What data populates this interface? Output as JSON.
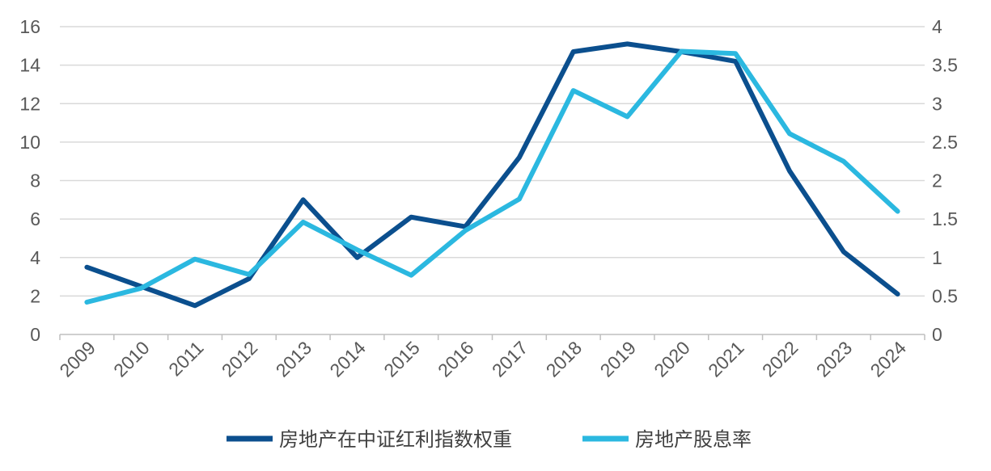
{
  "chart_data": {
    "type": "line",
    "categories": [
      "2009",
      "2010",
      "2011",
      "2012",
      "2013",
      "2014",
      "2015",
      "2016",
      "2017",
      "2018",
      "2019",
      "2020",
      "2021",
      "2022",
      "2023",
      "2024"
    ],
    "y_left": {
      "ylim": [
        0,
        16
      ],
      "ticks": [
        "0",
        "2",
        "4",
        "6",
        "8",
        "10",
        "12",
        "14",
        "16"
      ]
    },
    "y_right": {
      "ylim": [
        0,
        4
      ],
      "ticks": [
        "0",
        "0.5",
        "1",
        "1.5",
        "2",
        "2.5",
        "3",
        "3.5",
        "4"
      ]
    },
    "grid": "horizontal",
    "legend_position": "bottom",
    "series": [
      {
        "name": "房地产在中证红利指数权重",
        "axis": "left",
        "color": "#0b4f8e",
        "values": [
          3.5,
          2.5,
          1.5,
          2.9,
          7.0,
          4.0,
          6.1,
          5.6,
          9.2,
          14.7,
          15.1,
          14.7,
          14.2,
          8.5,
          4.3,
          2.1
        ]
      },
      {
        "name": "房地产股息率",
        "axis": "right",
        "color": "#2bb8e0",
        "values": [
          0.42,
          0.6,
          0.98,
          0.78,
          1.46,
          1.1,
          0.77,
          1.35,
          1.76,
          3.17,
          2.83,
          3.68,
          3.65,
          2.61,
          2.25,
          1.6
        ]
      }
    ]
  }
}
